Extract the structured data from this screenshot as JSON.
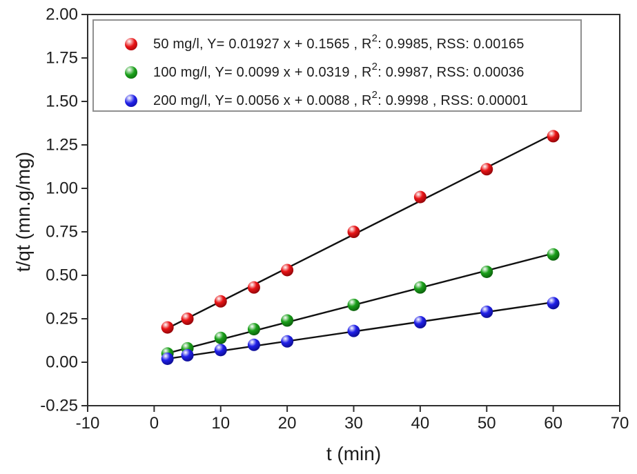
{
  "figure": {
    "background": "#ffffff"
  },
  "chart_data": {
    "type": "scatter",
    "title": "",
    "xlabel": "t (min)",
    "ylabel": "t/qt (mn.g/mg)",
    "xlim": [
      -10,
      70
    ],
    "ylim": [
      -0.25,
      2.0
    ],
    "x_ticks": [
      "-10",
      "0",
      "10",
      "20",
      "30",
      "40",
      "50",
      "60",
      "70"
    ],
    "y_ticks": [
      "-0.25",
      "0.00",
      "0.25",
      "0.50",
      "0.75",
      "1.00",
      "1.25",
      "1.50",
      "1.75",
      "2.00"
    ],
    "grid": false,
    "legend_position": "top-center-inside",
    "x": [
      2,
      5,
      10,
      15,
      20,
      30,
      40,
      50,
      60
    ],
    "series": [
      {
        "name": "50 mg/l",
        "color": "#e81416",
        "color_dark": "#8a0408",
        "values": [
          0.2,
          0.25,
          0.35,
          0.43,
          0.53,
          0.75,
          0.95,
          1.11,
          1.3
        ],
        "fit": {
          "slope": 0.01927,
          "intercept": 0.1565,
          "r2": "0.9985",
          "rss": "0.00165"
        },
        "legend_pre": "50 mg/l, Y= 0.01927 x + 0.1565 , R",
        "legend_sup": "2",
        "legend_post": ": 0.9985, RSS: 0.00165"
      },
      {
        "name": "100 mg/l",
        "color": "#1aa01a",
        "color_dark": "#0a5a0a",
        "values": [
          0.05,
          0.08,
          0.14,
          0.19,
          0.24,
          0.33,
          0.43,
          0.52,
          0.62
        ],
        "fit": {
          "slope": 0.0099,
          "intercept": 0.0319,
          "r2": "0.9987",
          "rss": "0.00036"
        },
        "legend_pre": "100 mg/l, Y= 0.0099 x + 0.0319 , R",
        "legend_sup": "2",
        "legend_post": ": 0.9987, RSS: 0.00036"
      },
      {
        "name": "200 mg/l",
        "color": "#2020e8",
        "color_dark": "#0b0b8a",
        "values": [
          0.02,
          0.04,
          0.07,
          0.1,
          0.12,
          0.18,
          0.23,
          0.29,
          0.34
        ],
        "fit": {
          "slope": 0.0056,
          "intercept": 0.0088,
          "r2": "0.9998",
          "rss": "0.00001"
        },
        "legend_pre": "200 mg/l, Y= 0.0056 x + 0.0088 , R",
        "legend_sup": "2",
        "legend_post": ": 0.9998 , RSS: 0.00001"
      }
    ],
    "style": {
      "line_color": "#111111",
      "axis_color": "#2e2e2e",
      "text_color": "#1c1c1c",
      "marker_radius": 9,
      "tick_font_size": 24
    }
  }
}
